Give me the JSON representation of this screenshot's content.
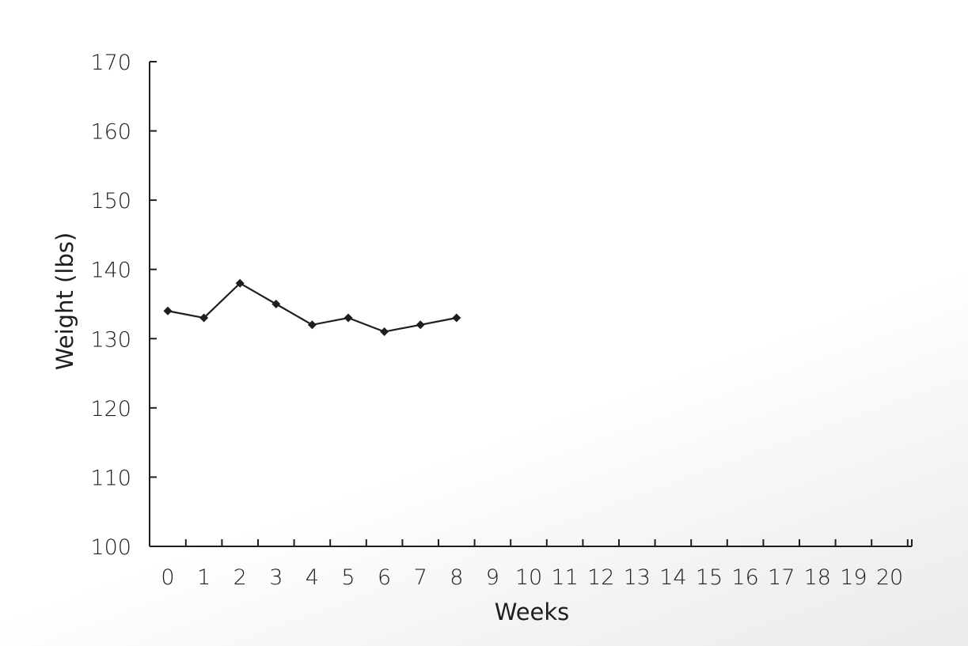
{
  "chart_data": {
    "type": "line",
    "title": "",
    "xlabel": "Weeks",
    "ylabel": "Weight (lbs)",
    "xlim": [
      0,
      20
    ],
    "ylim": [
      100,
      170
    ],
    "x_ticks": [
      0,
      1,
      2,
      3,
      4,
      5,
      6,
      7,
      8,
      9,
      10,
      11,
      12,
      13,
      14,
      15,
      16,
      17,
      18,
      19,
      20
    ],
    "y_ticks": [
      100,
      110,
      120,
      130,
      140,
      150,
      160,
      170
    ],
    "grid": false,
    "legend": "none",
    "series": [
      {
        "x": [
          0,
          1,
          2,
          3,
          4,
          5,
          6,
          7,
          8
        ],
        "values": [
          134,
          133,
          138,
          135,
          132,
          133,
          131,
          132,
          133
        ],
        "marker": "diamond",
        "color": "#1e1e1e"
      }
    ]
  }
}
